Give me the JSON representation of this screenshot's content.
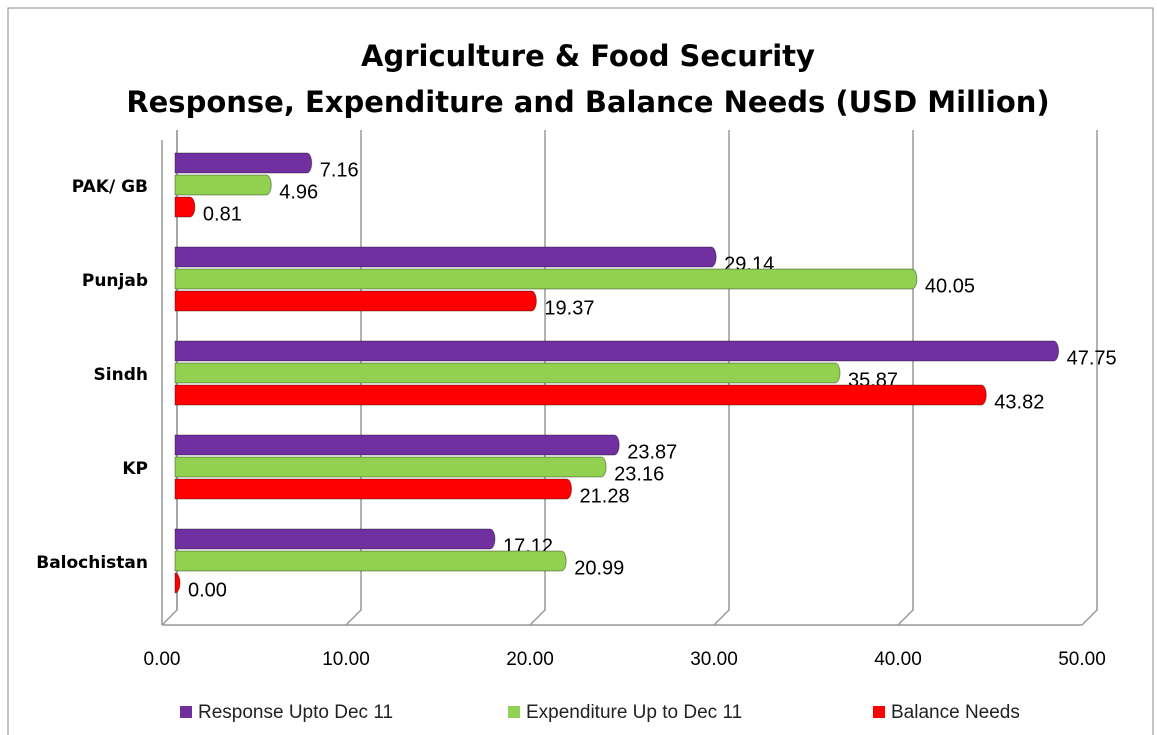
{
  "chart_data": {
    "type": "hbar",
    "title": "Agriculture & Food Security",
    "subtitle": "Response, Expenditure and Balance Needs (USD Million)",
    "categories": [
      "PAK/ GB",
      "Punjab",
      "Sindh",
      "KP",
      "Balochistan"
    ],
    "series": [
      {
        "name": "Response Upto Dec 11",
        "color": "#7030a0",
        "values": [
          7.16,
          29.14,
          47.75,
          23.87,
          17.12
        ]
      },
      {
        "name": "Expenditure Up to Dec 11",
        "color": "#92d050",
        "values": [
          4.96,
          40.05,
          35.87,
          23.16,
          20.99
        ]
      },
      {
        "name": "Balance Needs",
        "color": "#ff0000",
        "values": [
          0.81,
          19.37,
          43.82,
          21.28,
          0
        ],
        "value_labels": [
          "0.81",
          "19.37",
          "43.82",
          "21.28",
          "0.00"
        ]
      }
    ],
    "xlim": [
      0,
      50
    ],
    "xticks": [
      {
        "value": 0,
        "label": "0.00"
      },
      {
        "value": 10,
        "label": "10.00"
      },
      {
        "value": 20,
        "label": "20.00"
      },
      {
        "value": 30,
        "label": "30.00"
      },
      {
        "value": 40,
        "label": "40.00"
      },
      {
        "value": 50,
        "label": "50.00"
      }
    ],
    "grid": true,
    "legend": "bottom"
  }
}
